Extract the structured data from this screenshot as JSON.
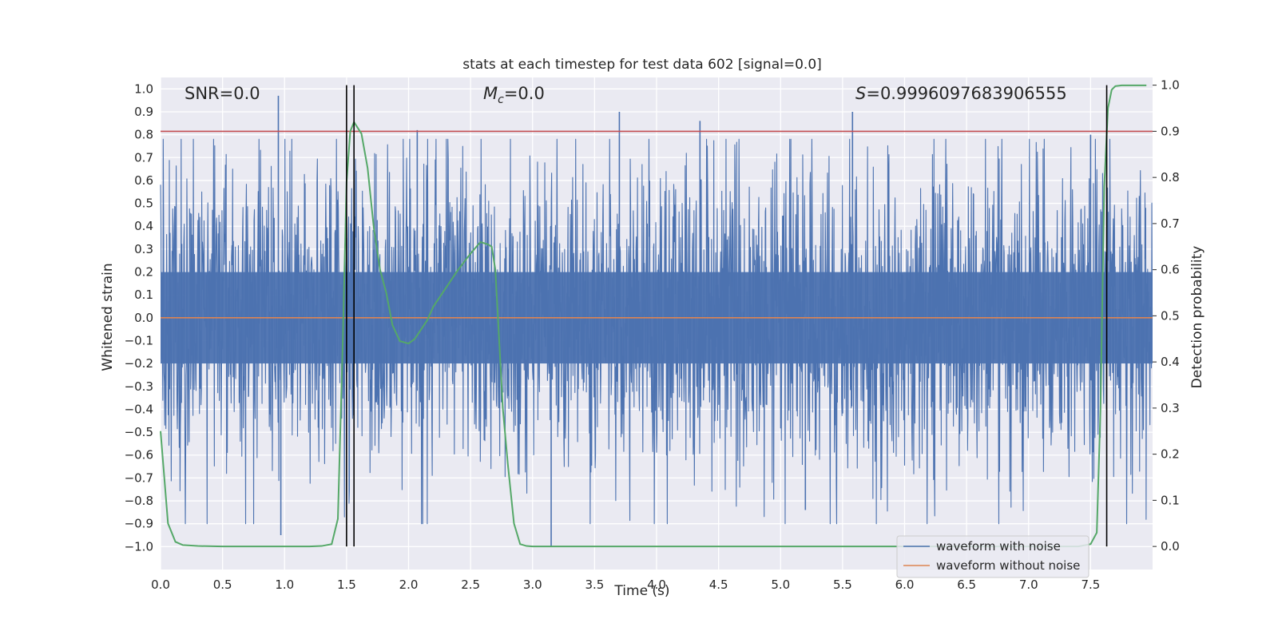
{
  "chart_data": {
    "type": "line",
    "title": "stats at each timestep for test data 602 [signal=0.0]",
    "xlabel": "Time (s)",
    "ylabel_left": "Whitened strain",
    "ylabel_right": "Detection probability",
    "xlim": [
      0.0,
      8.0
    ],
    "ylim_left": [
      -1.1,
      1.05
    ],
    "ylim_right": [
      -0.05,
      1.0167
    ],
    "x_ticks": [
      "0.0",
      "0.5",
      "1.0",
      "1.5",
      "2.0",
      "2.5",
      "3.0",
      "3.5",
      "4.0",
      "4.5",
      "5.0",
      "5.5",
      "6.0",
      "6.5",
      "7.0",
      "7.5"
    ],
    "y_left_ticks": [
      "1.0",
      "0.9",
      "0.8",
      "0.7",
      "0.6",
      "0.5",
      "0.4",
      "0.3",
      "0.2",
      "0.1",
      "0.0",
      "−0.1",
      "−0.2",
      "−0.3",
      "−0.4",
      "−0.5",
      "−0.6",
      "−0.7",
      "−0.8",
      "−0.9",
      "−1.0"
    ],
    "y_right_ticks": [
      "1.0",
      "0.9",
      "0.8",
      "0.7",
      "0.6",
      "0.5",
      "0.4",
      "0.3",
      "0.2",
      "0.1",
      "0.0"
    ],
    "annotations": {
      "snr": "SNR=0.0",
      "mc_symbol": "M",
      "mc_sub": "c",
      "mc_value": "=0.0",
      "s_symbol": "S",
      "s_value": "=0.9996097683906555"
    },
    "threshold_probability": 0.9,
    "vertical_markers_s": [
      1.5,
      1.56,
      7.63
    ],
    "series": [
      {
        "name": "waveform with noise",
        "color": "#4c72b0",
        "description_values": "noise samples between about -1.0 and 0.97",
        "peaks": [
          [
            0.95,
            0.97
          ],
          [
            3.15,
            -1.0
          ],
          [
            2.07,
            0.82
          ],
          [
            3.7,
            0.9
          ],
          [
            4.35,
            0.86
          ],
          [
            5.58,
            0.9
          ],
          [
            7.5,
            0.8
          ],
          [
            0.97,
            -0.95
          ],
          [
            5.2,
            -0.84
          ]
        ]
      },
      {
        "name": "waveform without noise",
        "color": "#dd8452",
        "value": 0.0
      },
      {
        "name": "detection probability",
        "color": "#55a868",
        "x": [
          0.0,
          0.06,
          0.12,
          0.18,
          0.3,
          0.5,
          0.8,
          1.0,
          1.2,
          1.3,
          1.38,
          1.43,
          1.47,
          1.5,
          1.53,
          1.56,
          1.62,
          1.67,
          1.72,
          1.77,
          1.82,
          1.87,
          1.93,
          2.0,
          2.05,
          2.1,
          2.15,
          2.2,
          2.3,
          2.4,
          2.5,
          2.58,
          2.64,
          2.67,
          2.7,
          2.73,
          2.76,
          2.8,
          2.85,
          2.9,
          2.95,
          3.0,
          3.5,
          4.0,
          5.0,
          6.0,
          7.0,
          7.4,
          7.5,
          7.55,
          7.58,
          7.61,
          7.64,
          7.67,
          7.7,
          7.75,
          7.85,
          7.95
        ],
        "y": [
          0.25,
          0.05,
          0.01,
          0.003,
          0.001,
          0.0,
          0.0,
          0.0,
          0.0,
          0.001,
          0.005,
          0.06,
          0.45,
          0.79,
          0.9,
          0.92,
          0.895,
          0.82,
          0.69,
          0.6,
          0.55,
          0.48,
          0.445,
          0.44,
          0.45,
          0.47,
          0.49,
          0.52,
          0.56,
          0.6,
          0.635,
          0.66,
          0.655,
          0.65,
          0.6,
          0.45,
          0.3,
          0.18,
          0.05,
          0.005,
          0.001,
          0.0,
          0.0,
          0.0,
          0.0,
          0.0,
          0.0,
          0.0,
          0.005,
          0.03,
          0.3,
          0.78,
          0.95,
          0.99,
          0.998,
          0.9995,
          0.9996,
          0.9996
        ]
      }
    ],
    "legend_location": "lower-right",
    "legend_entries": [
      "waveform with noise",
      "waveform without noise"
    ],
    "grid": true,
    "background_color": "#eaeaf2",
    "threshold_color": "#c44e52",
    "marker_color": "#000000"
  }
}
